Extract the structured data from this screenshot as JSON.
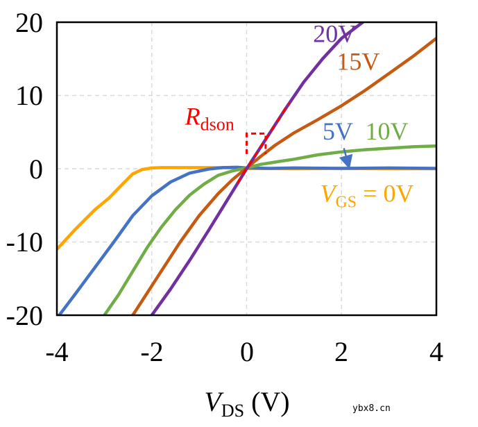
{
  "chart_data": {
    "type": "line",
    "x_label_main": "V",
    "x_label_sub": "DS",
    "x_label_unit": " (V)",
    "xlim": [
      -4,
      4
    ],
    "ylim": [
      -20,
      20
    ],
    "x_ticks": [
      "-4",
      "-2",
      "0",
      "2",
      "4"
    ],
    "y_ticks": [
      "20",
      "10",
      "0",
      "-10",
      "-20"
    ],
    "x_tick_values": [
      -4,
      -2,
      0,
      2,
      4
    ],
    "y_tick_values": [
      20,
      10,
      0,
      -10,
      -20
    ],
    "grid": true,
    "series": [
      {
        "name": "VGS = 0V",
        "color": "#FFA500",
        "x": [
          -4.0,
          -3.6,
          -3.2,
          -2.9,
          -2.6,
          -2.4,
          -2.2,
          -2.0,
          -1.8,
          -1.6,
          -1.4,
          -1.0,
          -0.5,
          0.0,
          1.0,
          2.0,
          3.0,
          4.0
        ],
        "y": [
          -11.0,
          -8.2,
          -5.6,
          -4.0,
          -2.0,
          -0.7,
          -0.1,
          0.1,
          0.15,
          0.15,
          0.15,
          0.15,
          0.15,
          0.05,
          0.0,
          0.05,
          0.0,
          0.0
        ]
      },
      {
        "name": "5V",
        "color": "#4472C4",
        "x": [
          -3.95,
          -3.6,
          -3.2,
          -2.8,
          -2.4,
          -2.0,
          -1.6,
          -1.2,
          -0.8,
          -0.5,
          -0.2,
          0.0,
          0.5,
          1.0,
          2.0,
          3.0,
          4.0
        ],
        "y": [
          -20.0,
          -17.0,
          -13.5,
          -10.0,
          -6.4,
          -3.7,
          -1.8,
          -0.6,
          -0.05,
          0.15,
          0.2,
          0.1,
          0.05,
          0.1,
          0.05,
          0.1,
          0.05
        ]
      },
      {
        "name": "10V",
        "color": "#70AD47",
        "x": [
          -3.0,
          -2.7,
          -2.4,
          -2.1,
          -1.8,
          -1.5,
          -1.2,
          -0.9,
          -0.6,
          -0.3,
          0.0,
          0.3,
          0.7,
          1.0,
          1.5,
          2.0,
          2.5,
          3.0,
          3.5,
          4.0
        ],
        "y": [
          -20.0,
          -17.2,
          -14.0,
          -10.8,
          -8.0,
          -5.6,
          -3.6,
          -2.1,
          -0.9,
          -0.3,
          0.1,
          0.6,
          1.0,
          1.3,
          1.9,
          2.3,
          2.6,
          2.8,
          3.0,
          3.1
        ]
      },
      {
        "name": "15V",
        "color": "#C55A11",
        "x": [
          -2.4,
          -2.2,
          -1.8,
          -1.4,
          -1.0,
          -0.6,
          -0.3,
          0.0,
          0.3,
          0.6,
          1.0,
          1.5,
          2.0,
          2.5,
          3.0,
          3.5,
          4.0
        ],
        "y": [
          -20.0,
          -18.0,
          -14.0,
          -10.0,
          -6.4,
          -3.4,
          -1.5,
          0.1,
          1.7,
          3.2,
          4.9,
          6.7,
          8.6,
          10.7,
          13.0,
          15.3,
          17.8
        ]
      },
      {
        "name": "20V",
        "color": "#7030A0",
        "x": [
          -2.0,
          -1.6,
          -1.2,
          -0.8,
          -0.4,
          0.0,
          0.4,
          0.8,
          1.2,
          1.6,
          2.0,
          2.45
        ],
        "y": [
          -20.0,
          -16.4,
          -12.5,
          -8.4,
          -4.2,
          0.0,
          4.0,
          8.0,
          11.8,
          15.0,
          17.8,
          20.0
        ]
      }
    ],
    "rdson_tangent": {
      "color": "#FF0000",
      "x": [
        -0.2,
        0.9
      ],
      "y": [
        -2.0,
        9.0
      ]
    },
    "rdson_triangle": {
      "color": "#FF0000",
      "x": [
        0.0,
        0.0,
        0.4,
        0.4
      ],
      "y": [
        2.0,
        4.8,
        4.8,
        2.0
      ]
    },
    "series_labels": [
      {
        "text": "20V",
        "color": "#7030A0",
        "x": 1.4,
        "y": 17.3
      },
      {
        "text": "15V",
        "color": "#C55A11",
        "x": 1.9,
        "y": 13.5
      },
      {
        "text": "5V",
        "color": "#4472C4",
        "x": 1.6,
        "y": 4.0
      },
      {
        "text": "10V",
        "color": "#70AD47",
        "x": 2.5,
        "y": 4.0
      }
    ],
    "vgs_label": {
      "main": "V",
      "sub": "GS",
      "rest": " = 0V",
      "color": "#FFA500",
      "x": 1.55,
      "y": -4.5
    },
    "rdson_label": {
      "main": "R",
      "sub": "dson",
      "color": "#FF0000",
      "x": -1.3,
      "y": 6.0
    },
    "arrow_5v": {
      "color": "#4472C4",
      "from": [
        2.05,
        2.8
      ],
      "to": [
        2.15,
        0.4
      ]
    }
  },
  "watermark": "ybx8.cn",
  "colors": {
    "frame": "#000000",
    "grid": "#D9D9D9",
    "background": "#FFFFFF"
  }
}
